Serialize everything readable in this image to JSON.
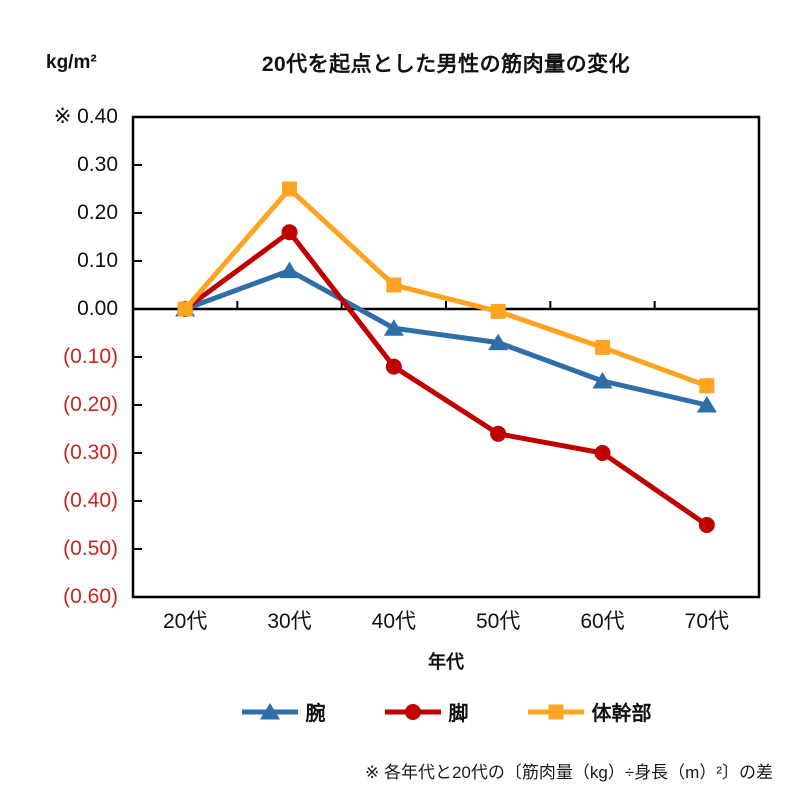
{
  "header": {
    "unit_label": "kg/m²"
  },
  "chart_data": {
    "type": "line",
    "title": "20代を起点とした男性の筋肉量の変化",
    "unit": "kg/m²",
    "xlabel": "年代",
    "categories": [
      "20代",
      "30代",
      "40代",
      "50代",
      "60代",
      "70代"
    ],
    "ylim": [
      -0.6,
      0.4
    ],
    "y_major_step": 0.1,
    "grid": false,
    "legend_position": "bottom",
    "y_tick_labels": [
      {
        "label": "※ 0.40",
        "value": 0.4,
        "negative": false
      },
      {
        "label": "0.30",
        "value": 0.3,
        "negative": false
      },
      {
        "label": "0.20",
        "value": 0.2,
        "negative": false
      },
      {
        "label": "0.10",
        "value": 0.1,
        "negative": false
      },
      {
        "label": "0.00",
        "value": 0.0,
        "negative": false
      },
      {
        "label": "(0.10)",
        "value": -0.1,
        "negative": true
      },
      {
        "label": "(0.20)",
        "value": -0.2,
        "negative": true
      },
      {
        "label": "(0.30)",
        "value": -0.3,
        "negative": true
      },
      {
        "label": "(0.40)",
        "value": -0.4,
        "negative": true
      },
      {
        "label": "(0.50)",
        "value": -0.5,
        "negative": true
      },
      {
        "label": "(0.60)",
        "value": -0.6,
        "negative": true
      }
    ],
    "series": [
      {
        "name": "腕",
        "marker": "triangle",
        "color": "#2E6FA8",
        "values": [
          0.0,
          0.08,
          -0.04,
          -0.07,
          -0.15,
          -0.2
        ]
      },
      {
        "name": "脚",
        "marker": "circle",
        "color": "#C00000",
        "values": [
          0.0,
          0.16,
          -0.12,
          -0.26,
          -0.3,
          -0.45
        ]
      },
      {
        "name": "体幹部",
        "marker": "square",
        "color": "#FFA320",
        "values": [
          0.0,
          0.25,
          0.05,
          -0.005,
          -0.08,
          -0.16
        ]
      }
    ],
    "footnote": "※ 各年代と20代の〔筋肉量（kg）÷身長（m）²〕の差"
  },
  "colors": {
    "axis": "#000000",
    "negative_tick_label": "#CC2222",
    "positive_tick_label": "#111111"
  }
}
